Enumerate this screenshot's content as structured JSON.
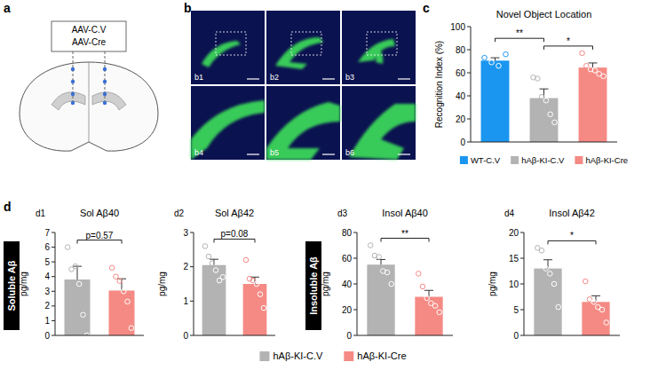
{
  "figure": {
    "panel_labels": [
      "a",
      "b",
      "c",
      "d"
    ],
    "schematic_labels": [
      "AAV-C.V",
      "AAV-Cre"
    ],
    "image_labels": [
      "b1",
      "b2",
      "b3",
      "b4",
      "b5",
      "b6"
    ],
    "chart_labels": [
      "d1",
      "d2",
      "d3",
      "d4"
    ],
    "group_labels": [
      "Soluble Aβ",
      "Insoluble Aβ"
    ],
    "legend_d": [
      {
        "name": "hAβ-KI-C.V",
        "color": "#b3b3b3"
      },
      {
        "name": "hAβ-KI-Cre",
        "color": "#f58a84"
      }
    ]
  },
  "chart_data": [
    {
      "type": "bar",
      "title": "Novel Object Location",
      "ylabel": "Recognition Index (%)",
      "categories": [
        "WT-C.V",
        "hAβ-KI-C.V",
        "hAβ-KI-Cre"
      ],
      "values": [
        70.5,
        38,
        64.5
      ],
      "errors": [
        2.5,
        8,
        4
      ],
      "points": [
        [
          73,
          69,
          66,
          76
        ],
        [
          56,
          55,
          39,
          36,
          24,
          17
        ],
        [
          77,
          66,
          63,
          62,
          59,
          57
        ]
      ],
      "colors": [
        "#1a96f0",
        "#b3b3b3",
        "#f58a84"
      ],
      "ylim": [
        0,
        100
      ],
      "yticks": [
        0,
        20,
        40,
        60,
        80,
        100
      ],
      "tick_labels": "y",
      "legend": "bottom",
      "annotations": [
        {
          "text": "**",
          "from": 0,
          "to": 1
        },
        {
          "text": "*",
          "from": 1,
          "to": 2
        }
      ]
    },
    {
      "type": "bar",
      "title": "Sol Aβ40",
      "ylabel": "pg/mg",
      "categories": [
        "hAβ-KI-C.V",
        "hAβ-KI-Cre"
      ],
      "values": [
        3.8,
        3.05
      ],
      "errors": [
        0.9,
        0.8
      ],
      "points": [
        [
          6,
          4.5,
          4.7,
          3.5,
          1.4,
          0
        ],
        [
          4.6,
          4.0,
          3.7,
          3.0,
          2.3,
          0.5
        ]
      ],
      "colors": [
        "#b3b3b3",
        "#f58a84"
      ],
      "ylim": [
        0,
        7
      ],
      "yticks": [
        0,
        1,
        2,
        3,
        4,
        5,
        6,
        7
      ],
      "tick_labels": "y",
      "annotations": [
        {
          "text": "p=0.57",
          "from": 0,
          "to": 1
        }
      ]
    },
    {
      "type": "bar",
      "title": "Sol Aβ42",
      "ylabel": "pg/mg",
      "categories": [
        "hAβ-KI-C.V",
        "hAβ-KI-Cre"
      ],
      "values": [
        2.05,
        1.5
      ],
      "errors": [
        0.17,
        0.2
      ],
      "points": [
        [
          2.6,
          2.3,
          2.1,
          1.9,
          1.6,
          1.7
        ],
        [
          2.2,
          1.65,
          1.6,
          1.5,
          1.2,
          0.8
        ]
      ],
      "colors": [
        "#b3b3b3",
        "#f58a84"
      ],
      "ylim": [
        0,
        3
      ],
      "yticks": [
        0,
        1,
        2,
        3
      ],
      "tick_labels": "y",
      "annotations": [
        {
          "text": "p=0.08",
          "from": 0,
          "to": 1
        }
      ]
    },
    {
      "type": "bar",
      "title": "Insol Aβ40",
      "ylabel": "pg/mg",
      "categories": [
        "hAβ-KI-C.V",
        "hAβ-KI-Cre"
      ],
      "values": [
        55,
        30
      ],
      "errors": [
        4,
        5
      ],
      "points": [
        [
          70,
          62,
          61,
          50,
          49,
          40
        ],
        [
          48,
          38,
          29,
          25,
          23,
          18
        ]
      ],
      "colors": [
        "#b3b3b3",
        "#f58a84"
      ],
      "ylim": [
        0,
        80
      ],
      "yticks": [
        0,
        20,
        40,
        60,
        80
      ],
      "tick_labels": "y",
      "annotations": [
        {
          "text": "**",
          "from": 0,
          "to": 1
        }
      ]
    },
    {
      "type": "bar",
      "title": "Insol Aβ42",
      "ylabel": "pg/mg",
      "categories": [
        "hAβ-KI-C.V",
        "hAβ-KI-Cre"
      ],
      "values": [
        13,
        6.5
      ],
      "errors": [
        1.7,
        1.2
      ],
      "points": [
        [
          17,
          16.5,
          13,
          12,
          10,
          5.5
        ],
        [
          10.5,
          7,
          6.5,
          5.5,
          5,
          2.5
        ]
      ],
      "colors": [
        "#b3b3b3",
        "#f58a84"
      ],
      "ylim": [
        0,
        20
      ],
      "yticks": [
        0,
        5,
        10,
        15,
        20
      ],
      "tick_labels": "y",
      "annotations": [
        {
          "text": "*",
          "from": 0,
          "to": 1
        }
      ]
    }
  ]
}
